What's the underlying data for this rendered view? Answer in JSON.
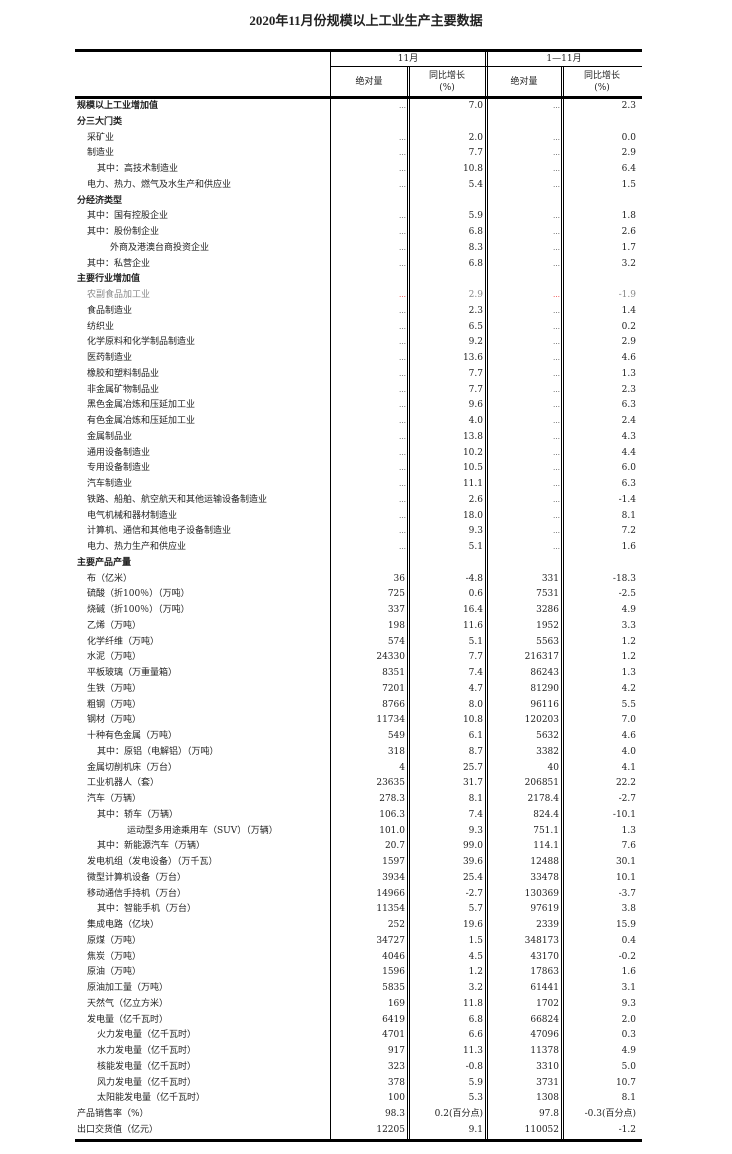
{
  "title": "2020年11月份规模以上工业生产主要数据",
  "header": {
    "group1": "11月",
    "group2": "1—11月",
    "abs": "绝对量",
    "yoy": "同比增长",
    "pct": "(%)"
  },
  "rows": [
    {
      "label": "规模以上工业增加值",
      "level": 0,
      "bold": true,
      "v": [
        "…",
        "7.0",
        "…",
        "2.3"
      ]
    },
    {
      "label": "分三大门类",
      "level": 0,
      "bold": true,
      "v": [
        "",
        "",
        "",
        ""
      ]
    },
    {
      "label": "采矿业",
      "level": 1,
      "v": [
        "…",
        "2.0",
        "…",
        "0.0"
      ]
    },
    {
      "label": "制造业",
      "level": 1,
      "v": [
        "…",
        "7.7",
        "…",
        "2.9"
      ]
    },
    {
      "label": "其中：高技术制造业",
      "level": 2,
      "v": [
        "…",
        "10.8",
        "…",
        "6.4"
      ]
    },
    {
      "label": "电力、热力、燃气及水生产和供应业",
      "level": 1,
      "v": [
        "…",
        "5.4",
        "…",
        "1.5"
      ]
    },
    {
      "label": "分经济类型",
      "level": 0,
      "bold": true,
      "v": [
        "",
        "",
        "",
        ""
      ]
    },
    {
      "label": "其中：国有控股企业",
      "level": 1,
      "v": [
        "…",
        "5.9",
        "…",
        "1.8"
      ]
    },
    {
      "label": "其中：股份制企业",
      "level": 1,
      "v": [
        "…",
        "6.8",
        "…",
        "2.6"
      ]
    },
    {
      "label": "外商及港澳台商投资企业",
      "level": 3,
      "v": [
        "…",
        "8.3",
        "…",
        "1.7"
      ]
    },
    {
      "label": "其中：私营企业",
      "level": 1,
      "v": [
        "…",
        "6.8",
        "…",
        "3.2"
      ]
    },
    {
      "label": "主要行业增加值",
      "level": 0,
      "bold": true,
      "v": [
        "",
        "",
        "",
        ""
      ]
    },
    {
      "label": "农副食品加工业",
      "level": 1,
      "gray": true,
      "v": [
        "…",
        "2.9",
        "…",
        "-1.9"
      ]
    },
    {
      "label": "食品制造业",
      "level": 1,
      "v": [
        "…",
        "2.3",
        "…",
        "1.4"
      ]
    },
    {
      "label": "纺织业",
      "level": 1,
      "v": [
        "…",
        "6.5",
        "…",
        "0.2"
      ]
    },
    {
      "label": "化学原料和化学制品制造业",
      "level": 1,
      "v": [
        "…",
        "9.2",
        "…",
        "2.9"
      ]
    },
    {
      "label": "医药制造业",
      "level": 1,
      "v": [
        "…",
        "13.6",
        "…",
        "4.6"
      ]
    },
    {
      "label": "橡胶和塑料制品业",
      "level": 1,
      "v": [
        "…",
        "7.7",
        "…",
        "1.3"
      ]
    },
    {
      "label": "非金属矿物制品业",
      "level": 1,
      "v": [
        "…",
        "7.7",
        "…",
        "2.3"
      ]
    },
    {
      "label": "黑色金属冶炼和压延加工业",
      "level": 1,
      "v": [
        "…",
        "9.6",
        "…",
        "6.3"
      ]
    },
    {
      "label": "有色金属冶炼和压延加工业",
      "level": 1,
      "v": [
        "…",
        "4.0",
        "…",
        "2.4"
      ]
    },
    {
      "label": "金属制品业",
      "level": 1,
      "v": [
        "…",
        "13.8",
        "…",
        "4.3"
      ]
    },
    {
      "label": "通用设备制造业",
      "level": 1,
      "v": [
        "…",
        "10.2",
        "…",
        "4.4"
      ]
    },
    {
      "label": "专用设备制造业",
      "level": 1,
      "v": [
        "…",
        "10.5",
        "…",
        "6.0"
      ]
    },
    {
      "label": "汽车制造业",
      "level": 1,
      "v": [
        "…",
        "11.1",
        "…",
        "6.3"
      ]
    },
    {
      "label": "铁路、船舶、航空航天和其他运输设备制造业",
      "level": 1,
      "v": [
        "…",
        "2.6",
        "…",
        "-1.4"
      ]
    },
    {
      "label": "电气机械和器材制造业",
      "level": 1,
      "v": [
        "…",
        "18.0",
        "…",
        "8.1"
      ]
    },
    {
      "label": "计算机、通信和其他电子设备制造业",
      "level": 1,
      "v": [
        "…",
        "9.3",
        "…",
        "7.2"
      ]
    },
    {
      "label": "电力、热力生产和供应业",
      "level": 1,
      "v": [
        "…",
        "5.1",
        "…",
        "1.6"
      ]
    },
    {
      "label": "主要产品产量",
      "level": 0,
      "bold": true,
      "v": [
        "",
        "",
        "",
        ""
      ]
    },
    {
      "label": "布（亿米）",
      "level": 1,
      "v": [
        "36",
        "-4.8",
        "331",
        "-18.3"
      ]
    },
    {
      "label": "硫酸（折100％）（万吨）",
      "level": 1,
      "v": [
        "725",
        "0.6",
        "7531",
        "-2.5"
      ]
    },
    {
      "label": "烧碱（折100％）（万吨）",
      "level": 1,
      "v": [
        "337",
        "16.4",
        "3286",
        "4.9"
      ]
    },
    {
      "label": "乙烯（万吨）",
      "level": 1,
      "v": [
        "198",
        "11.6",
        "1952",
        "3.3"
      ]
    },
    {
      "label": "化学纤维（万吨）",
      "level": 1,
      "v": [
        "574",
        "5.1",
        "5563",
        "1.2"
      ]
    },
    {
      "label": "水泥（万吨）",
      "level": 1,
      "v": [
        "24330",
        "7.7",
        "216317",
        "1.2"
      ]
    },
    {
      "label": "平板玻璃（万重量箱）",
      "level": 1,
      "v": [
        "8351",
        "7.4",
        "86243",
        "1.3"
      ]
    },
    {
      "label": "生铁（万吨）",
      "level": 1,
      "v": [
        "7201",
        "4.7",
        "81290",
        "4.2"
      ]
    },
    {
      "label": "粗钢（万吨）",
      "level": 1,
      "v": [
        "8766",
        "8.0",
        "96116",
        "5.5"
      ]
    },
    {
      "label": "钢材（万吨）",
      "level": 1,
      "v": [
        "11734",
        "10.8",
        "120203",
        "7.0"
      ]
    },
    {
      "label": "十种有色金属（万吨）",
      "level": 1,
      "v": [
        "549",
        "6.1",
        "5632",
        "4.6"
      ]
    },
    {
      "label": "其中：原铝（电解铝）（万吨）",
      "level": 2,
      "v": [
        "318",
        "8.7",
        "3382",
        "4.0"
      ]
    },
    {
      "label": "金属切削机床（万台）",
      "level": 1,
      "v": [
        "4",
        "25.7",
        "40",
        "4.1"
      ]
    },
    {
      "label": "工业机器人（套）",
      "level": 1,
      "v": [
        "23635",
        "31.7",
        "206851",
        "22.2"
      ]
    },
    {
      "label": "汽车（万辆）",
      "level": 1,
      "v": [
        "278.3",
        "8.1",
        "2178.4",
        "-2.7"
      ]
    },
    {
      "label": "其中：轿车（万辆）",
      "level": 2,
      "v": [
        "106.3",
        "7.4",
        "824.4",
        "-10.1"
      ]
    },
    {
      "label": "运动型多用途乘用车（SUV）（万辆）",
      "level": 4,
      "v": [
        "101.0",
        "9.3",
        "751.1",
        "1.3"
      ]
    },
    {
      "label": "其中：新能源汽车（万辆）",
      "level": 2,
      "v": [
        "20.7",
        "99.0",
        "114.1",
        "7.6"
      ]
    },
    {
      "label": "发电机组（发电设备）（万千瓦）",
      "level": 1,
      "v": [
        "1597",
        "39.6",
        "12488",
        "30.1"
      ]
    },
    {
      "label": "微型计算机设备（万台）",
      "level": 1,
      "v": [
        "3934",
        "25.4",
        "33478",
        "10.1"
      ]
    },
    {
      "label": "移动通信手持机（万台）",
      "level": 1,
      "v": [
        "14966",
        "-2.7",
        "130369",
        "-3.7"
      ]
    },
    {
      "label": "其中：智能手机（万台）",
      "level": 2,
      "v": [
        "11354",
        "5.7",
        "97619",
        "3.8"
      ]
    },
    {
      "label": "集成电路（亿块）",
      "level": 1,
      "v": [
        "252",
        "19.6",
        "2339",
        "15.9"
      ]
    },
    {
      "label": "原煤（万吨）",
      "level": 1,
      "v": [
        "34727",
        "1.5",
        "348173",
        "0.4"
      ]
    },
    {
      "label": "焦炭（万吨）",
      "level": 1,
      "v": [
        "4046",
        "4.5",
        "43170",
        "-0.2"
      ]
    },
    {
      "label": "原油（万吨）",
      "level": 1,
      "v": [
        "1596",
        "1.2",
        "17863",
        "1.6"
      ]
    },
    {
      "label": "原油加工量（万吨）",
      "level": 1,
      "v": [
        "5835",
        "3.2",
        "61441",
        "3.1"
      ]
    },
    {
      "label": "天然气（亿立方米）",
      "level": 1,
      "v": [
        "169",
        "11.8",
        "1702",
        "9.3"
      ]
    },
    {
      "label": "发电量（亿千瓦时）",
      "level": 1,
      "v": [
        "6419",
        "6.8",
        "66824",
        "2.0"
      ]
    },
    {
      "label": "火力发电量（亿千瓦时）",
      "level": 2,
      "v": [
        "4701",
        "6.6",
        "47096",
        "0.3"
      ]
    },
    {
      "label": "水力发电量（亿千瓦时）",
      "level": 2,
      "v": [
        "917",
        "11.3",
        "11378",
        "4.9"
      ]
    },
    {
      "label": "核能发电量（亿千瓦时）",
      "level": 2,
      "v": [
        "323",
        "-0.8",
        "3310",
        "5.0"
      ]
    },
    {
      "label": "风力发电量（亿千瓦时）",
      "level": 2,
      "v": [
        "378",
        "5.9",
        "3731",
        "10.7"
      ]
    },
    {
      "label": "太阳能发电量（亿千瓦时）",
      "level": 2,
      "v": [
        "100",
        "5.3",
        "1308",
        "8.1"
      ]
    },
    {
      "label": "产品销售率（%）",
      "level": 0,
      "v": [
        "98.3",
        "0.2(百分点)",
        "97.8",
        "-0.3(百分点)"
      ]
    },
    {
      "label": "出口交货值（亿元）",
      "level": 0,
      "v": [
        "12205",
        "9.1",
        "110052",
        "-1.2"
      ]
    }
  ]
}
